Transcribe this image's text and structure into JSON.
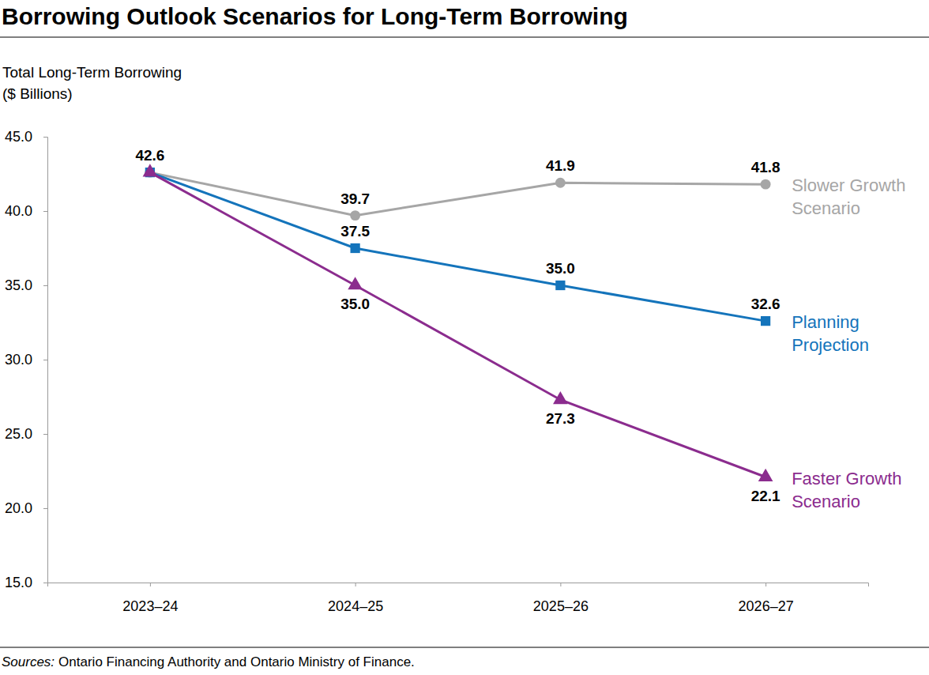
{
  "chart_data": {
    "type": "line",
    "title": "Borrowing Outlook Scenarios for Long-Term Borrowing",
    "y_label": [
      "Total Long-Term Borrowing",
      "($ Billions)"
    ],
    "categories": [
      "2023–24",
      "2024–25",
      "2025–26",
      "2026–27"
    ],
    "series": [
      {
        "name": "Slower Growth Scenario",
        "color": "#a6a6a6",
        "marker": "circle",
        "values": [
          42.6,
          39.7,
          41.9,
          41.8
        ],
        "value_labels": [
          "42.6",
          "39.7",
          "41.9",
          "41.8"
        ]
      },
      {
        "name": "Planning Projection",
        "color": "#1474bb",
        "marker": "square",
        "values": [
          42.6,
          37.5,
          35.0,
          32.6
        ],
        "value_labels": [
          null,
          "37.5",
          "35.0",
          "32.6"
        ]
      },
      {
        "name": "Faster Growth Scenario",
        "color": "#8b2c8e",
        "marker": "triangle",
        "values": [
          42.6,
          35.0,
          27.3,
          22.1
        ],
        "value_labels": [
          null,
          "35.0",
          "27.3",
          "22.1"
        ]
      }
    ],
    "ylim": [
      15,
      45
    ],
    "yticks": [
      {
        "value": 15,
        "label": "15.0"
      },
      {
        "value": 20,
        "label": "20.0"
      },
      {
        "value": 25,
        "label": "25.0"
      },
      {
        "value": 30,
        "label": "30.0"
      },
      {
        "value": 35,
        "label": "35.0"
      },
      {
        "value": 40,
        "label": "40.0"
      },
      {
        "value": 45,
        "label": "45.0"
      }
    ],
    "grid": false,
    "data_labels": true,
    "source_label": "Sources:",
    "source": "Ontario Financing Authority and Ontario Ministry of Finance."
  }
}
